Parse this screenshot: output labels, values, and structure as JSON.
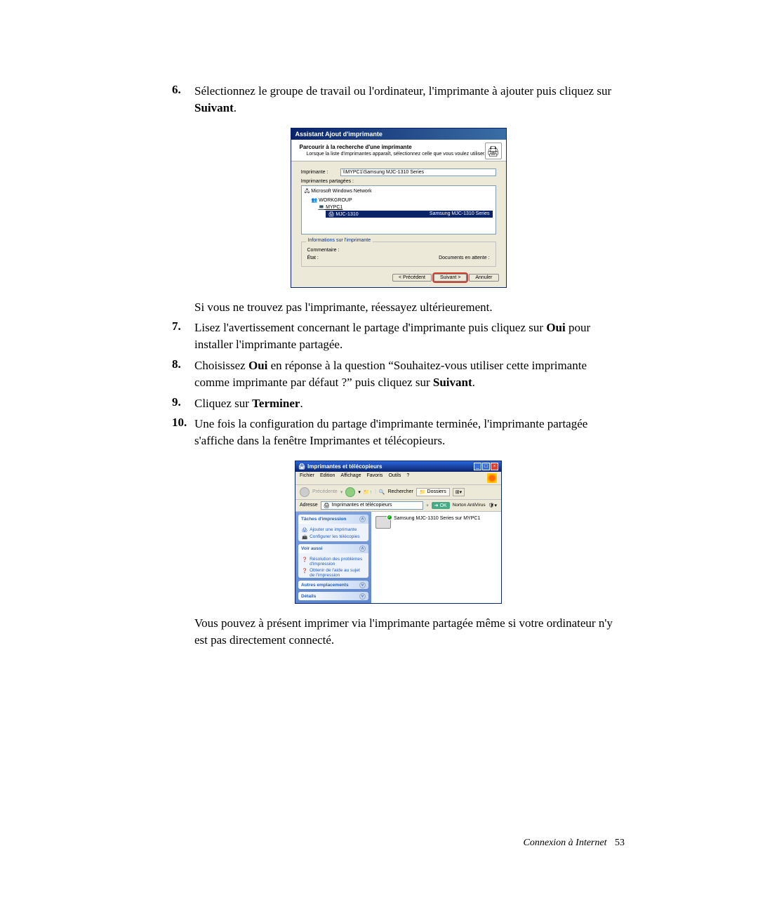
{
  "steps": {
    "s6_num": "6.",
    "s6_text_a": "Sélectionnez le groupe de travail ou l'ordinateur, l'imprimante à ajouter puis cliquez sur ",
    "s6_bold": "Suivant",
    "s6_text_b": ".",
    "mid_para": "Si vous ne trouvez pas l'imprimante, réessayez ultérieurement.",
    "s7_num": "7.",
    "s7_a": "Lisez l'avertissement concernant le partage d'imprimante puis cliquez sur ",
    "s7_bold": "Oui",
    "s7_b": " pour installer l'imprimante partagée.",
    "s8_num": "8.",
    "s8_a": "Choisissez ",
    "s8_bold1": "Oui",
    "s8_b": " en réponse à la question “Souhaitez-vous utiliser cette imprimante comme imprimante par défaut ?” puis cliquez sur ",
    "s8_bold2": "Suivant",
    "s8_c": ".",
    "s9_num": "9.",
    "s9_a": "Cliquez sur ",
    "s9_bold": "Terminer",
    "s9_b": ".",
    "s10_num": "10.",
    "s10_text": "Une fois la configuration du partage d'imprimante terminée, l'imprimante partagée s'affiche dans la fenêtre Imprimantes et télécopieurs.",
    "final_para": "Vous pouvez à présent imprimer via l'imprimante partagée même si votre ordinateur n'y est pas directement connecté."
  },
  "wizard": {
    "title": "Assistant Ajout d'imprimante",
    "header_title": "Parcourir à la recherche d'une imprimante",
    "header_sub": "Lorsque la liste d'imprimantes apparaît, sélectionnez celle que vous voulez utiliser.",
    "printer_label": "Imprimante :",
    "printer_value": "\\\\MYPC1\\Samsung MJC-1310 Series",
    "shared_label": "Imprimantes partagées :",
    "tree": {
      "root": "Microsoft Windows Network",
      "group": "WORKGROUP",
      "pc": "MYPC1",
      "printer_id": "MJC-1310",
      "printer_desc": "Samsung MJC-1310 Series"
    },
    "info_title": "Informations sur l'imprimante",
    "comment_label": "Commentaire :",
    "state_label": "État :",
    "docs_label": "Documents en attente :",
    "btn_prev": "< Précédent",
    "btn_next": "Suivant >",
    "btn_cancel": "Annuler",
    "icon_glyph": "🖨"
  },
  "explorer": {
    "title": "Imprimantes et télécopieurs",
    "menu": {
      "file": "Fichier",
      "edit": "Edition",
      "view": "Affichage",
      "fav": "Favoris",
      "tools": "Outils",
      "help": "?"
    },
    "toolbar": {
      "back": "Précédente",
      "search": "Rechercher",
      "folders": "Dossiers"
    },
    "addr_label": "Adresse",
    "addr_value": "Imprimantes et télécopieurs",
    "go": "OK",
    "norton": "Norton AntiVirus",
    "panels": {
      "tasks_title": "Tâches d'impression",
      "task_add": "Ajouter une imprimante",
      "task_fax": "Configurer les télécopies",
      "see_title": "Voir aussi",
      "see_trouble": "Résolution des problèmes d'impression",
      "see_help": "Obtenir de l'aide au sujet de l'impression",
      "other_title": "Autres emplacements",
      "details_title": "Détails"
    },
    "printer_name": "Samsung MJC-1310 Series sur MYPC1"
  },
  "footer": {
    "text": "Connexion à Internet",
    "page": "53"
  },
  "colors": {
    "xp_blue_dark": "#0a246a",
    "xp_blue_light": "#3a6ea5",
    "xp_face": "#ece9d8",
    "link_blue": "#215dc6",
    "side_grad_top": "#7a9ee0",
    "side_grad_bottom": "#6088d0"
  }
}
